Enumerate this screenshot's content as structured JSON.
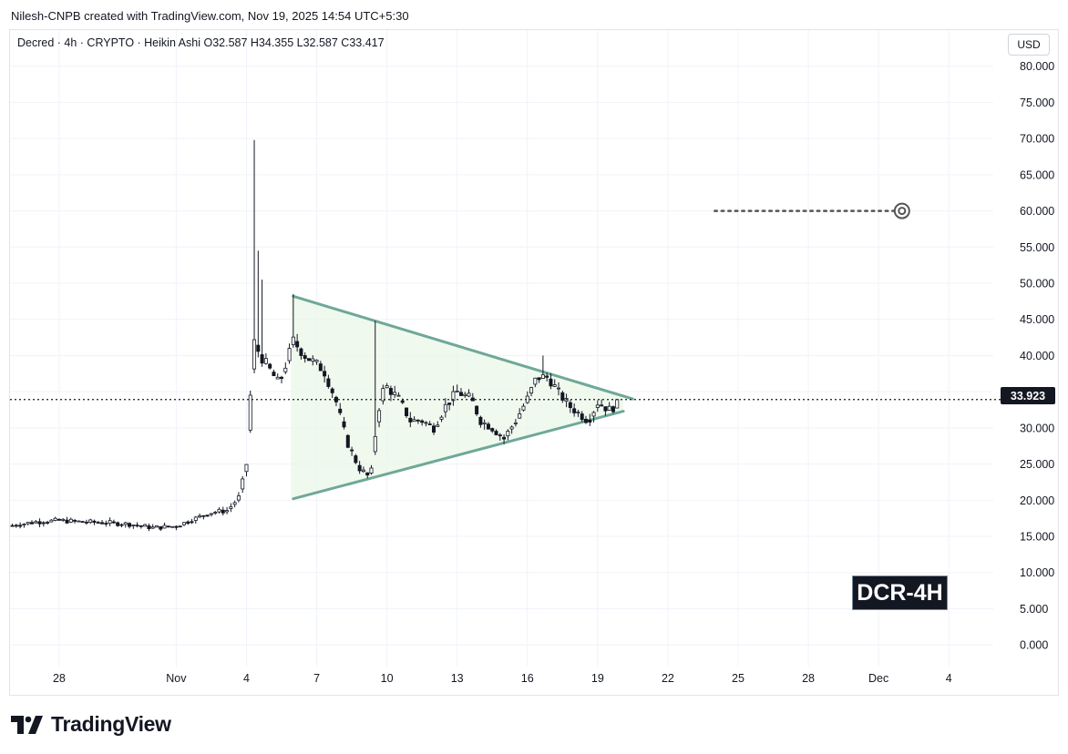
{
  "header": {
    "attribution": "Nilesh-CNPB created with TradingView.com, Nov 19, 2025 14:54 UTC+5:30"
  },
  "legend": {
    "text": "Decred · 4h · CRYPTO · Heikin Ashi  O32.587  H34.355  L32.587  C33.417"
  },
  "currency": "USD",
  "last_price": "33.923",
  "overlay_label": "DCR-4H",
  "brand": {
    "name": "TradingView",
    "logo_icon": "tradingview-logo-icon"
  },
  "colors": {
    "up": "#131722",
    "down": "#131722",
    "pattern_line": "#6fa898",
    "pattern_fill": "#eaf6e7",
    "target": "#555555"
  },
  "chart_data": {
    "type": "candlestick",
    "style": "Heikin Ashi",
    "symbol": "Decred",
    "interval": "4h",
    "ohlc": {
      "open": 32.587,
      "high": 34.355,
      "low": 32.587,
      "close": 33.417
    },
    "y_range": [
      -3,
      85
    ],
    "y_ticks": [
      80,
      75,
      70,
      65,
      60,
      55,
      50,
      45,
      40,
      35,
      30,
      25,
      20,
      15,
      10,
      5,
      0
    ],
    "y_tick_labels": [
      "80.000",
      "75.000",
      "70.000",
      "65.000",
      "60.000",
      "55.000",
      "50.000",
      "45.000",
      "40.000",
      "35.000",
      "30.000",
      "25.000",
      "20.000",
      "15.000",
      "10.000",
      "5.000",
      "0.000"
    ],
    "x_ticks": [
      {
        "label": "28",
        "day": -4
      },
      {
        "label": "Nov",
        "day": 1
      },
      {
        "label": "4",
        "day": 4
      },
      {
        "label": "7",
        "day": 7
      },
      {
        "label": "10",
        "day": 10
      },
      {
        "label": "13",
        "day": 13
      },
      {
        "label": "16",
        "day": 16
      },
      {
        "label": "19",
        "day": 19
      },
      {
        "label": "22",
        "day": 22
      },
      {
        "label": "25",
        "day": 25
      },
      {
        "label": "28",
        "day": 28
      },
      {
        "label": "Dec",
        "day": 31
      },
      {
        "label": "4",
        "day": 34
      }
    ],
    "x_range": [
      -6.1,
      35.9
    ],
    "last_price": 33.923,
    "target_level": 60.0,
    "target_from_day": 24,
    "target_to_day": 32,
    "triangle": {
      "upper": {
        "from": [
          6.0,
          48.2
        ],
        "to": [
          20.5,
          34.0
        ]
      },
      "lower": {
        "from": [
          6.0,
          20.2
        ],
        "to": [
          20.1,
          32.3
        ]
      },
      "shade_start_day": 5.9
    },
    "key_prices": [
      {
        "day": -6.0,
        "price": 16.5
      },
      {
        "day": -5.0,
        "price": 17.0
      },
      {
        "day": -4.0,
        "price": 17.2
      },
      {
        "day": -3.0,
        "price": 17.0
      },
      {
        "day": -2.0,
        "price": 16.9
      },
      {
        "day": -1.0,
        "price": 16.7
      },
      {
        "day": 0.0,
        "price": 16.2
      },
      {
        "day": 1.0,
        "price": 16.4
      },
      {
        "day": 1.6,
        "price": 17.2
      },
      {
        "day": 2.5,
        "price": 18.3
      },
      {
        "day": 3.2,
        "price": 18.6
      },
      {
        "day": 3.7,
        "price": 20.5
      },
      {
        "day": 4.0,
        "price": 25.0
      },
      {
        "day": 4.3,
        "price": 42.0
      },
      {
        "day": 4.6,
        "price": 40.0
      },
      {
        "day": 5.0,
        "price": 38.0
      },
      {
        "day": 5.4,
        "price": 36.0
      },
      {
        "day": 6.0,
        "price": 42.0
      },
      {
        "day": 6.5,
        "price": 40.0
      },
      {
        "day": 7.3,
        "price": 38.0
      },
      {
        "day": 7.8,
        "price": 34.0
      },
      {
        "day": 8.3,
        "price": 28.0
      },
      {
        "day": 8.8,
        "price": 24.5
      },
      {
        "day": 9.3,
        "price": 23.0
      },
      {
        "day": 9.6,
        "price": 32.0
      },
      {
        "day": 9.9,
        "price": 36.0
      },
      {
        "day": 10.5,
        "price": 34.0
      },
      {
        "day": 11.0,
        "price": 31.0
      },
      {
        "day": 11.5,
        "price": 31.0
      },
      {
        "day": 12.0,
        "price": 30.0
      },
      {
        "day": 12.5,
        "price": 33.0
      },
      {
        "day": 13.0,
        "price": 35.0
      },
      {
        "day": 13.6,
        "price": 34.0
      },
      {
        "day": 14.0,
        "price": 31.0
      },
      {
        "day": 14.5,
        "price": 30.0
      },
      {
        "day": 15.0,
        "price": 28.5
      },
      {
        "day": 15.5,
        "price": 31.0
      },
      {
        "day": 16.0,
        "price": 34.0
      },
      {
        "day": 16.4,
        "price": 37.0
      },
      {
        "day": 16.9,
        "price": 37.0
      },
      {
        "day": 17.3,
        "price": 35.0
      },
      {
        "day": 17.8,
        "price": 33.0
      },
      {
        "day": 18.2,
        "price": 32.0
      },
      {
        "day": 18.6,
        "price": 31.0
      },
      {
        "day": 19.0,
        "price": 33.5
      },
      {
        "day": 19.5,
        "price": 32.5
      },
      {
        "day": 19.9,
        "price": 33.4
      }
    ]
  }
}
